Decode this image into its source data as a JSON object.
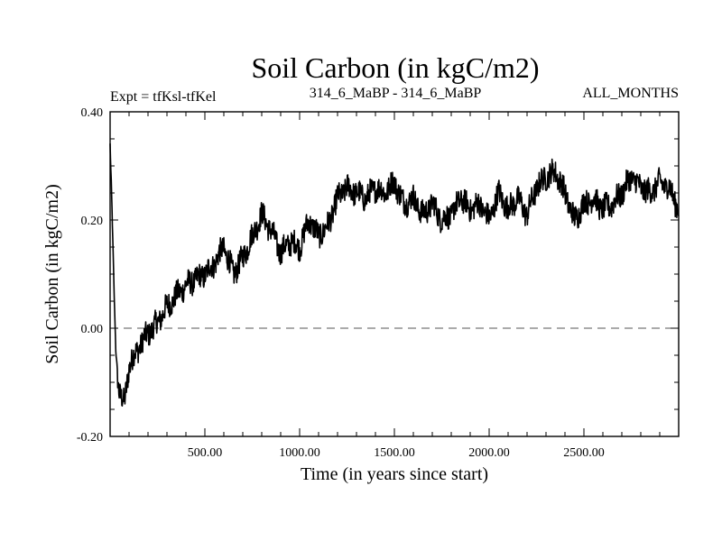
{
  "chart_data": {
    "type": "line",
    "title": "Soil Carbon (in kgC/m2)",
    "subtitle_left": "Expt = tfKsl-tfKel",
    "subtitle_center": "314_6_MaBP - 314_6_MaBP",
    "subtitle_right": "ALL_MONTHS",
    "xlabel": "Time (in years since start)",
    "ylabel": "Soil Carbon (in kgC/m2)",
    "xlim": [
      0,
      3000
    ],
    "ylim": [
      -0.2,
      0.4
    ],
    "xticks": [
      500,
      1000,
      1500,
      2000,
      2500
    ],
    "xtick_labels": [
      "500.00",
      "1000.00",
      "1500.00",
      "2000.00",
      "2500.00"
    ],
    "yticks": [
      -0.2,
      0.0,
      0.2,
      0.4
    ],
    "ytick_labels": [
      "-0.20",
      "0.00",
      "0.20",
      "0.40"
    ],
    "reference_line": {
      "y": 0.0,
      "style": "dashed"
    },
    "series": [
      {
        "name": "Soil Carbon",
        "color": "#000000",
        "x": [
          0,
          10,
          20,
          30,
          45,
          60,
          75,
          100,
          130,
          160,
          200,
          250,
          300,
          350,
          400,
          450,
          500,
          550,
          600,
          650,
          700,
          750,
          800,
          850,
          900,
          950,
          1000,
          1050,
          1100,
          1150,
          1200,
          1250,
          1300,
          1350,
          1400,
          1450,
          1500,
          1550,
          1600,
          1650,
          1700,
          1750,
          1800,
          1850,
          1900,
          1950,
          2000,
          2050,
          2100,
          2150,
          2200,
          2250,
          2300,
          2350,
          2400,
          2450,
          2500,
          2550,
          2600,
          2650,
          2700,
          2750,
          2800,
          2850,
          2900,
          2950,
          3000
        ],
        "y": [
          0.34,
          0.22,
          0.08,
          -0.04,
          -0.11,
          -0.13,
          -0.14,
          -0.07,
          -0.05,
          -0.03,
          -0.01,
          0.01,
          0.04,
          0.06,
          0.08,
          0.09,
          0.1,
          0.12,
          0.15,
          0.1,
          0.13,
          0.17,
          0.21,
          0.18,
          0.14,
          0.16,
          0.15,
          0.2,
          0.17,
          0.19,
          0.24,
          0.26,
          0.25,
          0.24,
          0.26,
          0.25,
          0.27,
          0.23,
          0.24,
          0.21,
          0.23,
          0.2,
          0.21,
          0.24,
          0.22,
          0.23,
          0.2,
          0.25,
          0.22,
          0.24,
          0.21,
          0.26,
          0.28,
          0.29,
          0.25,
          0.2,
          0.23,
          0.24,
          0.22,
          0.23,
          0.25,
          0.28,
          0.26,
          0.25,
          0.27,
          0.26,
          0.22
        ]
      }
    ]
  }
}
